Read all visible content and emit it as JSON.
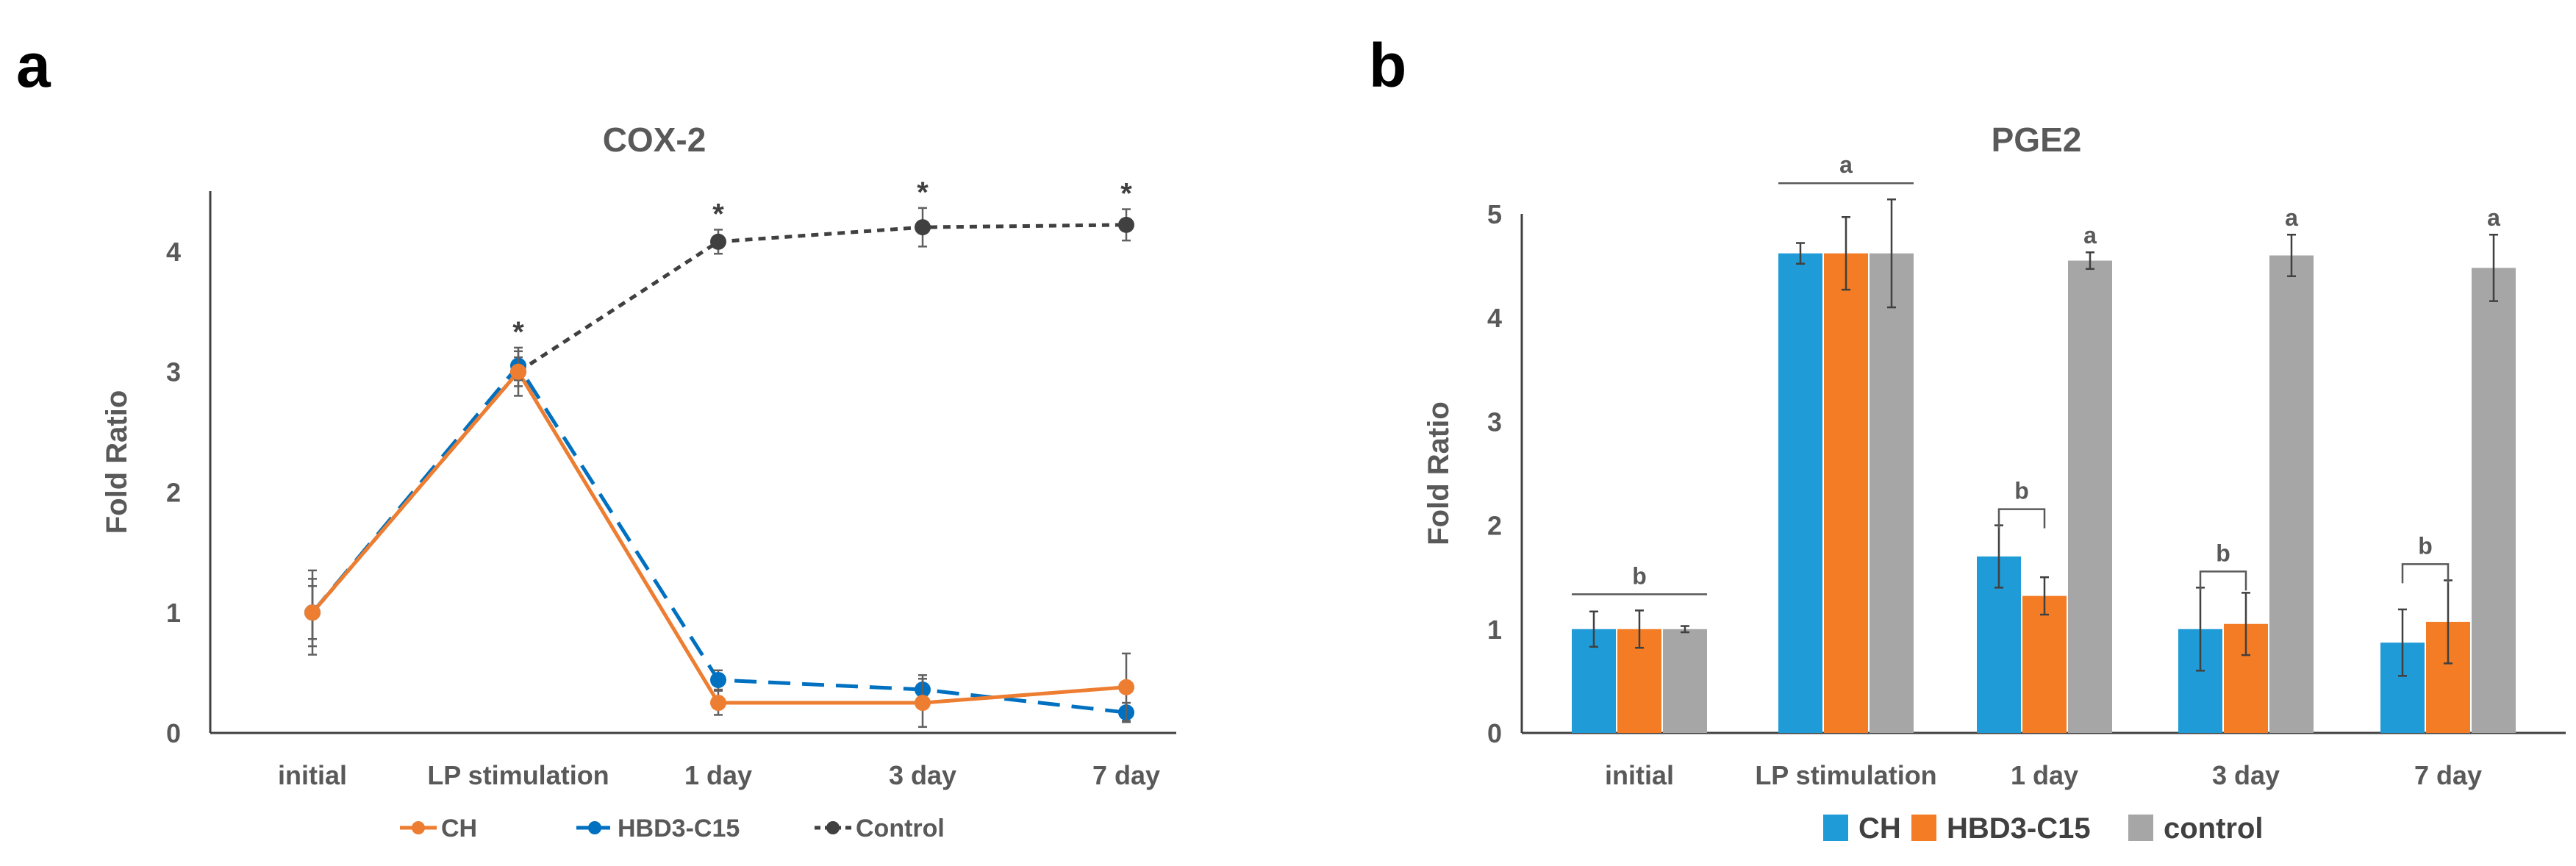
{
  "panels": {
    "a": {
      "letter": "a"
    },
    "b": {
      "letter": "b"
    }
  },
  "chart_data": [
    {
      "type": "line",
      "title": "COX-2",
      "xlabel": "",
      "ylabel": "Fold Ratio",
      "categories": [
        "initial",
        "LP stimulation",
        "1 day",
        "3 day",
        "7 day"
      ],
      "ylim": [
        0,
        4.5
      ],
      "yticks": [
        0,
        1,
        2,
        3,
        4
      ],
      "grid": false,
      "legend_position": "bottom",
      "series": [
        {
          "name": "CH",
          "color": "#ed7d31",
          "line_style": "solid",
          "values": [
            1.0,
            3.0,
            0.25,
            0.25,
            0.38
          ],
          "errors": [
            0.28,
            0.12,
            0.1,
            0.2,
            0.28
          ]
        },
        {
          "name": "HBD3-C15",
          "color": "#0070c0",
          "line_style": "long-dash",
          "values": [
            1.0,
            3.05,
            0.44,
            0.36,
            0.17
          ],
          "errors": [
            0.22,
            0.12,
            0.08,
            0.12,
            0.08
          ]
        },
        {
          "name": "Control",
          "color": "#404040",
          "line_style": "short-dash",
          "values": [
            1.0,
            3.0,
            4.08,
            4.2,
            4.22
          ],
          "errors": [
            0.35,
            0.2,
            0.1,
            0.16,
            0.13
          ]
        }
      ],
      "annotations": [
        {
          "category": "LP stimulation",
          "text": "*"
        },
        {
          "category": "1 day",
          "text": "*"
        },
        {
          "category": "3 day",
          "text": "*"
        },
        {
          "category": "7 day",
          "text": "*"
        }
      ]
    },
    {
      "type": "bar",
      "title": "PGE2",
      "xlabel": "",
      "ylabel": "Fold Ratio",
      "categories": [
        "initial",
        "LP stimulation",
        "1 day",
        "3 day",
        "7 day"
      ],
      "ylim": [
        0,
        5
      ],
      "yticks": [
        0,
        1,
        2,
        3,
        4,
        5
      ],
      "grid": false,
      "legend_position": "bottom",
      "series": [
        {
          "name": "CH",
          "color": "#1f9bd7",
          "values": [
            1.0,
            4.62,
            1.7,
            1.0,
            0.87
          ],
          "errors": [
            0.17,
            0.1,
            0.3,
            0.4,
            0.32
          ]
        },
        {
          "name": "HBD3-C15",
          "color": "#f47c24",
          "values": [
            1.0,
            4.62,
            1.32,
            1.05,
            1.07
          ],
          "errors": [
            0.18,
            0.35,
            0.18,
            0.3,
            0.4
          ]
        },
        {
          "name": "control",
          "color": "#a6a6a6",
          "values": [
            1.0,
            4.62,
            4.55,
            4.6,
            4.48
          ],
          "errors": [
            0.03,
            0.52,
            0.08,
            0.2,
            0.32
          ]
        }
      ],
      "annotations": [
        {
          "category": "initial",
          "text": "b",
          "span": "all"
        },
        {
          "category": "LP stimulation",
          "text": "a",
          "span": "all"
        },
        {
          "category": "1 day",
          "text": "b",
          "span": "CH-HBD3-C15"
        },
        {
          "category": "1 day",
          "text": "a",
          "span": "control"
        },
        {
          "category": "3 day",
          "text": "b",
          "span": "CH-HBD3-C15"
        },
        {
          "category": "3 day",
          "text": "a",
          "span": "control"
        },
        {
          "category": "7 day",
          "text": "b",
          "span": "CH-HBD3-C15"
        },
        {
          "category": "7 day",
          "text": "a",
          "span": "control"
        }
      ]
    }
  ]
}
